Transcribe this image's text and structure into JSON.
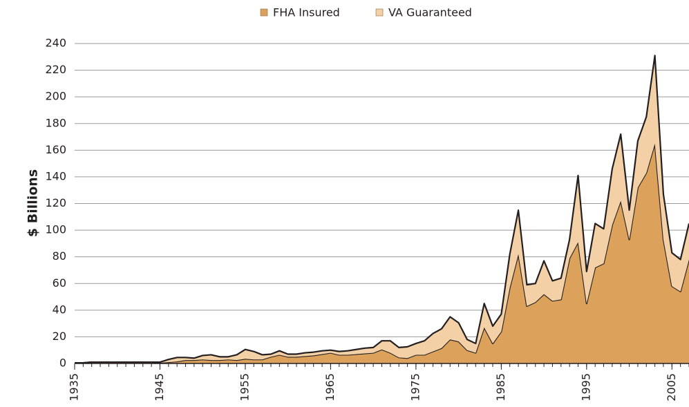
{
  "chart_data": {
    "type": "stacked-area",
    "y_label": "$ Billions",
    "x": [
      1935,
      1936,
      1937,
      1938,
      1939,
      1940,
      1941,
      1942,
      1943,
      1944,
      1945,
      1946,
      1947,
      1948,
      1949,
      1950,
      1951,
      1952,
      1953,
      1954,
      1955,
      1956,
      1957,
      1958,
      1959,
      1960,
      1961,
      1962,
      1963,
      1964,
      1965,
      1966,
      1967,
      1968,
      1969,
      1970,
      1971,
      1972,
      1973,
      1974,
      1975,
      1976,
      1977,
      1978,
      1979,
      1980,
      1981,
      1982,
      1983,
      1984,
      1985,
      1986,
      1987,
      1988,
      1989,
      1990,
      1991,
      1992,
      1993,
      1994,
      1995,
      1996,
      1997,
      1998,
      1999,
      2000,
      2001,
      2002,
      2003,
      2004,
      2005,
      2006,
      2007
    ],
    "series": [
      {
        "name": "FHA Insured",
        "color": "#dca15b",
        "values": [
          0.5,
          0.5,
          1,
          1,
          1,
          1,
          1,
          1,
          1,
          1,
          0.5,
          1,
          1.5,
          2.5,
          2.5,
          3,
          2.5,
          2.5,
          3,
          2.5,
          3.5,
          3,
          3,
          5,
          6.5,
          5,
          5,
          5.5,
          6,
          7,
          8,
          6.5,
          6.5,
          7,
          7.5,
          8,
          10.5,
          8,
          4.5,
          4,
          6.5,
          6.5,
          9,
          11.5,
          18,
          16.5,
          10,
          8,
          27,
          15,
          24,
          57,
          82,
          43,
          46,
          52,
          47,
          48,
          79,
          91,
          45,
          72,
          75,
          104,
          122,
          93,
          132,
          143,
          165,
          93,
          58,
          54,
          78
        ]
      },
      {
        "name": "VA Guaranteed",
        "color": "#f3d0a6",
        "values": [
          0,
          0,
          0,
          0,
          0,
          0,
          0,
          0,
          0,
          0,
          0.5,
          2,
          3,
          2,
          1.5,
          3,
          4,
          2.5,
          2,
          4,
          7,
          6,
          3.5,
          2,
          3,
          2,
          2,
          2.5,
          2.5,
          2.5,
          2,
          2.5,
          3,
          3.5,
          4,
          4,
          6.5,
          9,
          7.5,
          8.5,
          8.5,
          10.5,
          13.5,
          14.5,
          17,
          14,
          8,
          7,
          18,
          13,
          13,
          25,
          33,
          16,
          14,
          25,
          15,
          16,
          14,
          50,
          24,
          33,
          26,
          42,
          50,
          22,
          35,
          42,
          66,
          34,
          25,
          24,
          27
        ]
      }
    ],
    "line_color": "#231f20",
    "xlim": [
      1935,
      2007
    ],
    "xticks": [
      1935,
      1945,
      1955,
      1965,
      1975,
      1985,
      1995,
      2005
    ],
    "ylim": [
      0,
      240
    ],
    "yticks": [
      0,
      20,
      40,
      60,
      80,
      100,
      120,
      140,
      160,
      180,
      200,
      220,
      240
    ],
    "grid": true,
    "legend": "top"
  }
}
